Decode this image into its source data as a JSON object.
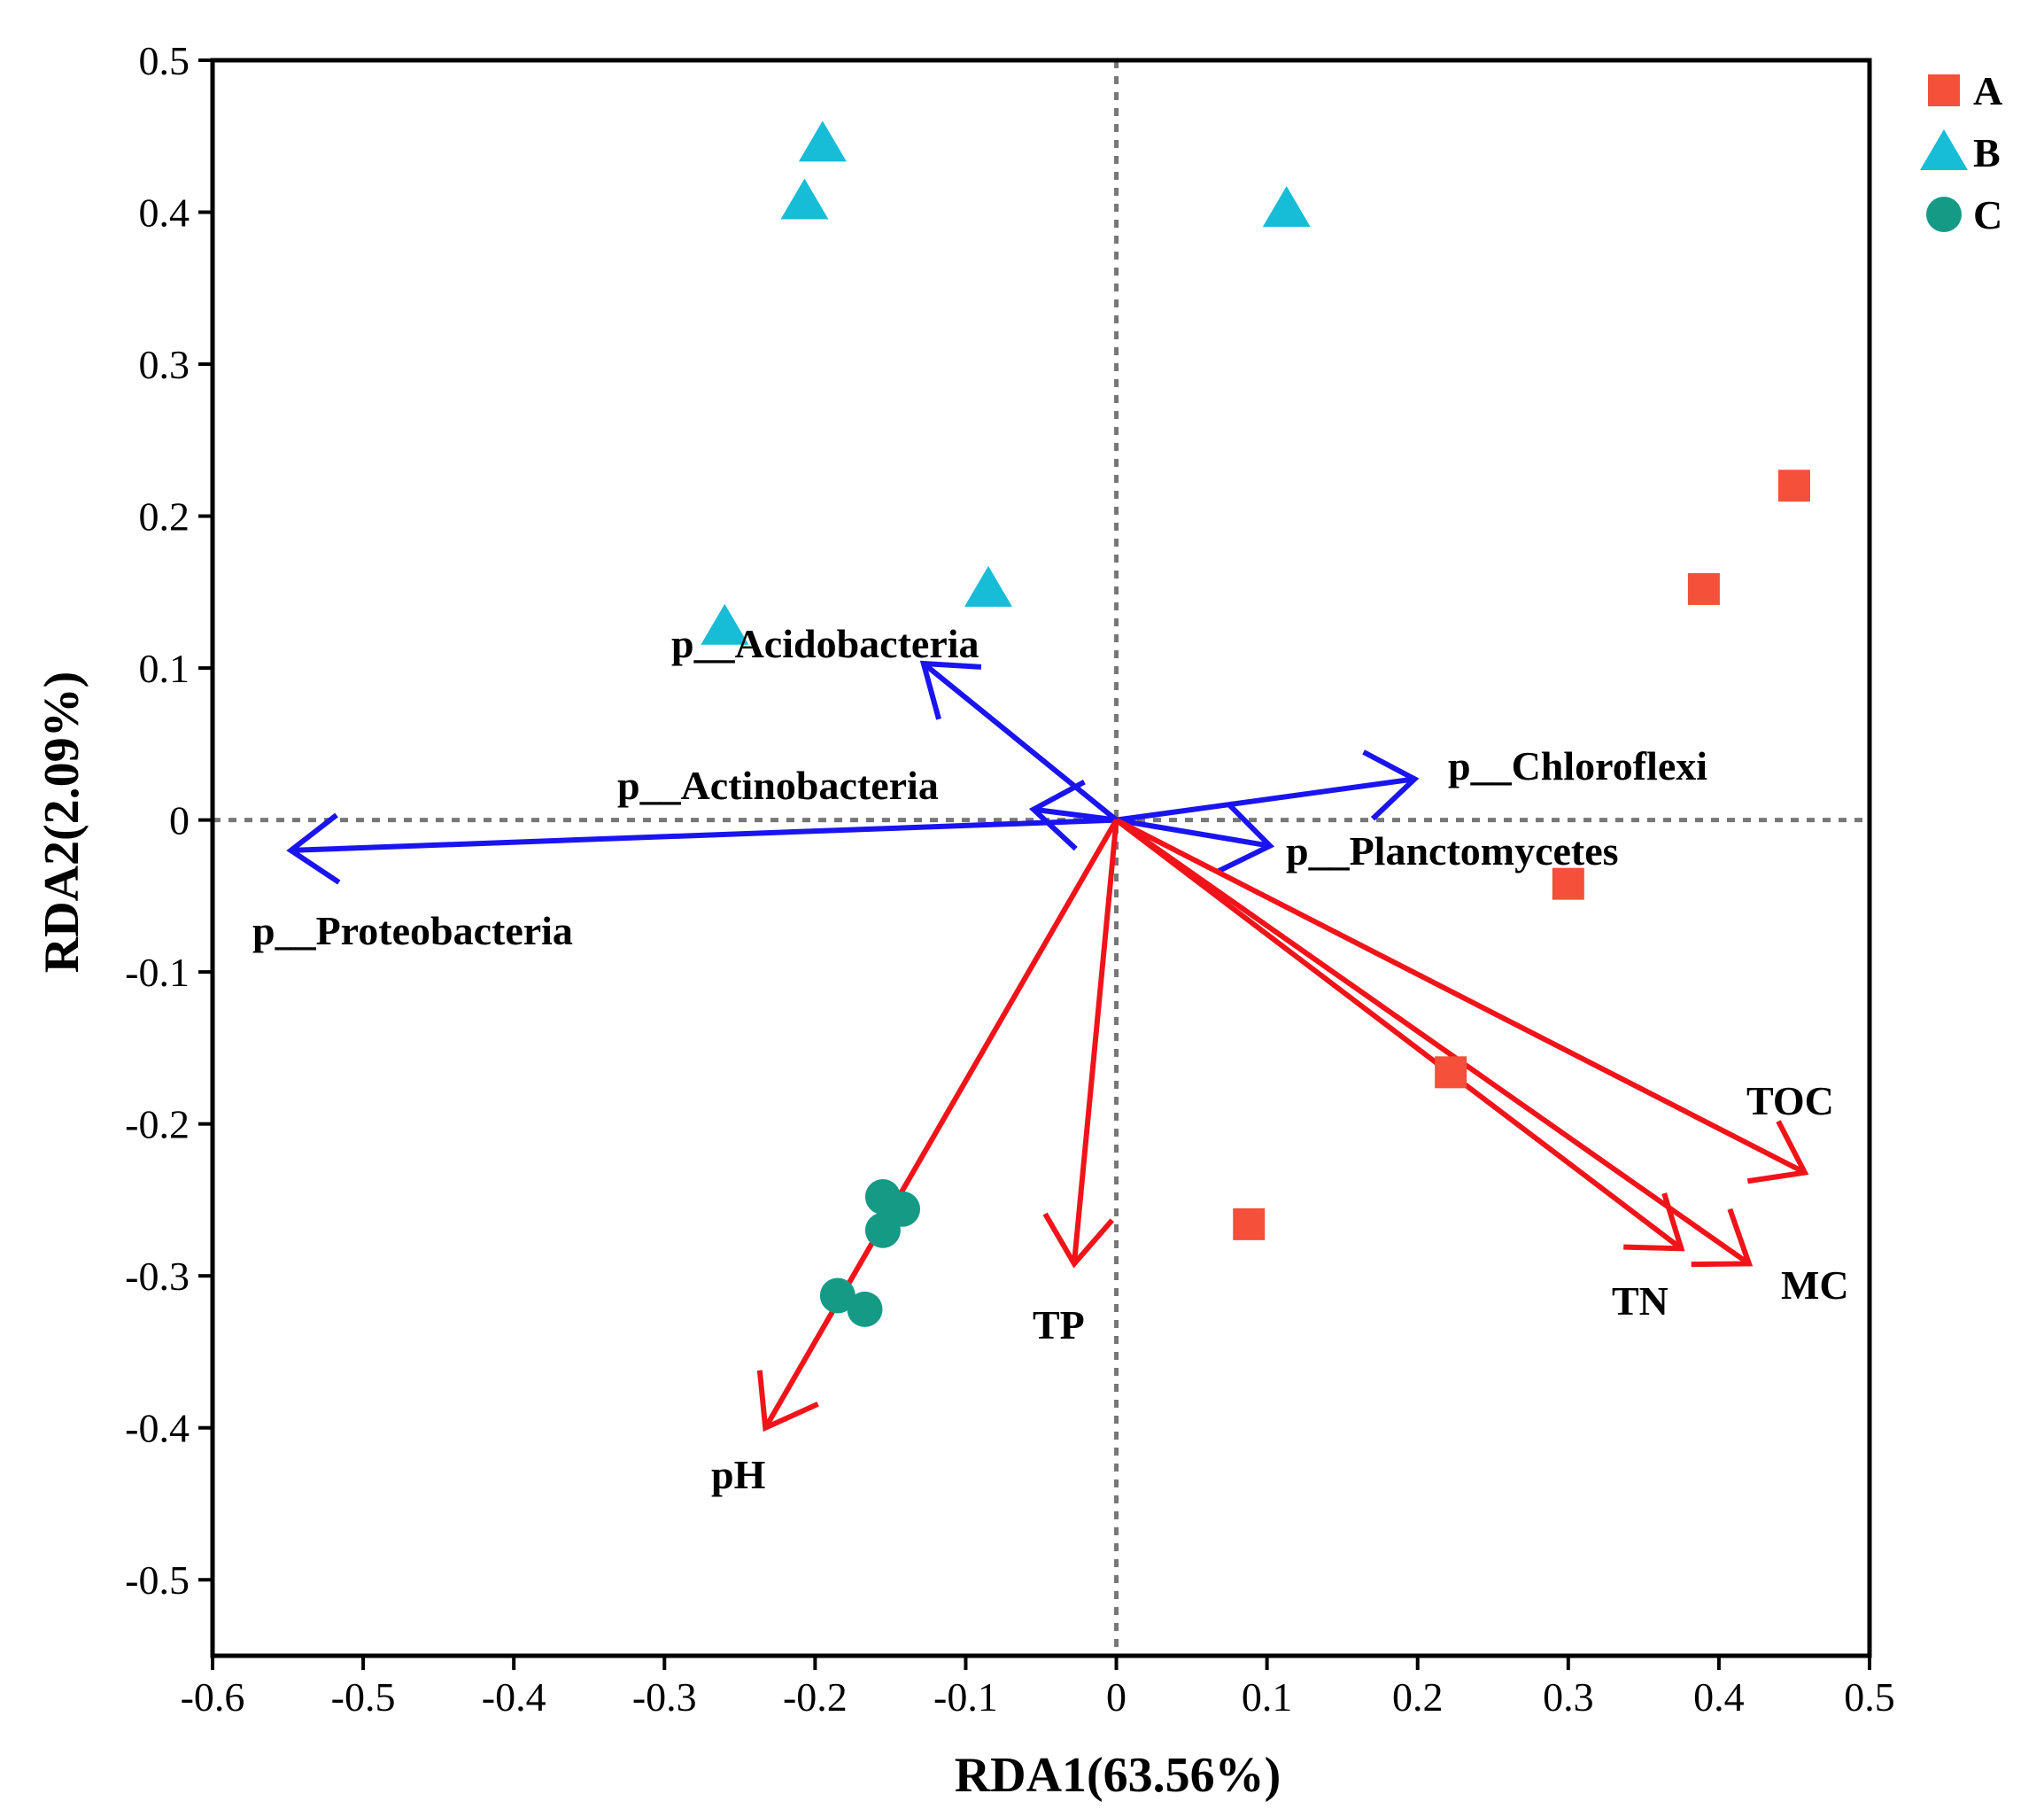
{
  "chart_data": {
    "type": "scatter",
    "title": "",
    "xlabel": "RDA1(63.56%)",
    "ylabel": "RDA2(2.09%)",
    "xlim": [
      -0.6,
      0.5
    ],
    "ylim": [
      -0.55,
      0.5
    ],
    "xticks": [
      -0.6,
      -0.5,
      -0.4,
      -0.3,
      -0.2,
      -0.1,
      0,
      0.1,
      0.2,
      0.3,
      0.4,
      0.5
    ],
    "xtick_labels": [
      "-0.6",
      "-0.5",
      "-0.4",
      "-0.3",
      "-0.2",
      "-0.1",
      "0",
      "0.1",
      "0.2",
      "0.3",
      "0.4",
      "0.5"
    ],
    "yticks": [
      0.5,
      0.4,
      0.3,
      0.2,
      0.1,
      0,
      -0.1,
      -0.2,
      -0.3,
      -0.4,
      -0.5
    ],
    "ytick_labels": [
      "0.5",
      "0.4",
      "0.3",
      "0.2",
      "0.1",
      "0",
      "-0.1",
      "-0.2",
      "-0.3",
      "-0.4",
      "-0.5"
    ],
    "reference_lines": {
      "x": 0,
      "y": 0,
      "style": "dotted"
    },
    "legend": {
      "position": "outside-top-right",
      "entries": [
        "A",
        "B",
        "C"
      ]
    },
    "series": [
      {
        "name": "A",
        "marker": "square",
        "color": "#F4503A",
        "points": [
          [
            0.45,
            0.22
          ],
          [
            0.39,
            0.152
          ],
          [
            0.3,
            -0.042
          ],
          [
            0.222,
            -0.166
          ],
          [
            0.088,
            -0.266
          ]
        ]
      },
      {
        "name": "B",
        "marker": "triangle",
        "color": "#17BCD6",
        "points": [
          [
            -0.195,
            0.445
          ],
          [
            -0.207,
            0.407
          ],
          [
            0.113,
            0.402
          ],
          [
            -0.085,
            0.152
          ],
          [
            -0.26,
            0.127
          ]
        ]
      },
      {
        "name": "C",
        "marker": "circle",
        "color": "#159A86",
        "points": [
          [
            -0.155,
            -0.248
          ],
          [
            -0.142,
            -0.256
          ],
          [
            -0.155,
            -0.27
          ],
          [
            -0.185,
            -0.313
          ],
          [
            -0.167,
            -0.322
          ]
        ]
      }
    ],
    "species_arrows": {
      "color": "#1A14F0",
      "items": [
        {
          "label": "p__Acidobacteria",
          "x": -0.128,
          "y": 0.103
        },
        {
          "label": "p__Actinobacteria",
          "x": -0.055,
          "y": 0.007
        },
        {
          "label": "p__Proteobacteria",
          "x": -0.548,
          "y": -0.02
        },
        {
          "label": "p__Chloroflexi",
          "x": 0.198,
          "y": 0.027
        },
        {
          "label": "p__Planctomycetes",
          "x": 0.102,
          "y": -0.017
        }
      ]
    },
    "environment_arrows": {
      "color": "#F0141A",
      "items": [
        {
          "label": "TOC",
          "x": 0.457,
          "y": -0.232
        },
        {
          "label": "TN",
          "x": 0.375,
          "y": -0.282
        },
        {
          "label": "MC",
          "x": 0.42,
          "y": -0.292
        },
        {
          "label": "TP",
          "x": -0.028,
          "y": -0.292
        },
        {
          "label": "pH",
          "x": -0.233,
          "y": -0.4
        }
      ]
    }
  }
}
